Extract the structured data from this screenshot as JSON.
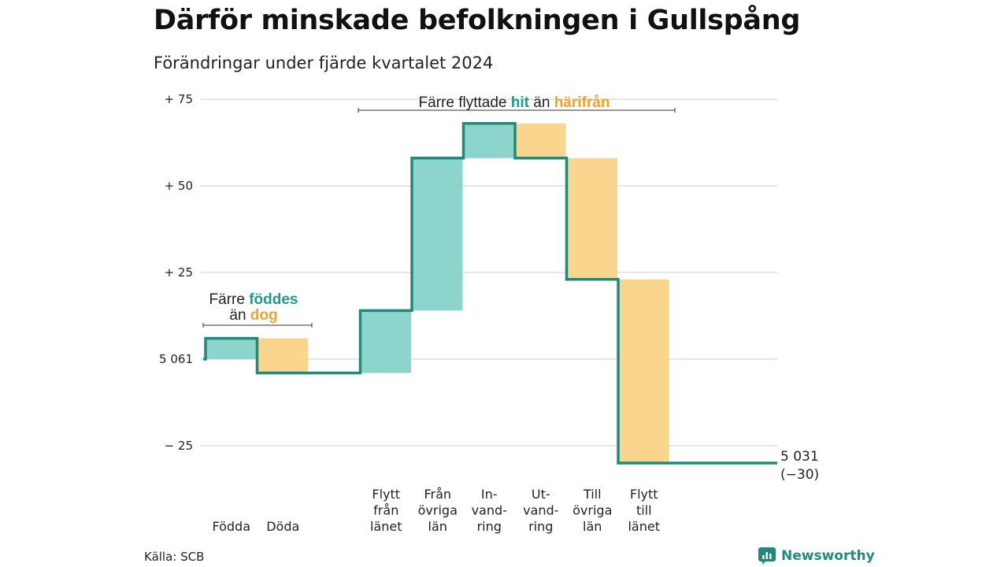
{
  "title": "Därför minskade befolkningen i Gullspång",
  "subtitle": "Förändringar under fjärde kvartalet 2024",
  "source": "Källa: SCB",
  "brand": "Newsworthy",
  "colors": {
    "increase": "#8dd5cc",
    "decrease": "#fad58e",
    "line": "#1f8a7c",
    "accent_text_green": "#1f9a8a",
    "accent_text_orange": "#f2a22c",
    "grid": "#dddddd"
  },
  "chart_data": {
    "type": "waterfall",
    "start_population": 5061,
    "end_population": 5031,
    "end_label": {
      "line1": "5 031",
      "line2": "(−30)"
    },
    "y_ticks": [
      {
        "value": 75,
        "label": "+ 75"
      },
      {
        "value": 50,
        "label": "+ 50"
      },
      {
        "value": 25,
        "label": "+ 25"
      },
      {
        "value": 0,
        "label": "5 061"
      },
      {
        "value": -25,
        "label": "− 25"
      }
    ],
    "ylim": [
      -30,
      75
    ],
    "grid": true,
    "steps": [
      {
        "label": [
          "Födda"
        ],
        "delta": 6,
        "kind": "increase"
      },
      {
        "label": [
          "Döda"
        ],
        "delta": -10,
        "kind": "decrease"
      },
      {
        "label": [],
        "delta": 0,
        "kind": "gap"
      },
      {
        "label": [
          "Flytt",
          "från",
          "länet"
        ],
        "delta": 18,
        "kind": "increase"
      },
      {
        "label": [
          "Från",
          "övriga",
          "län"
        ],
        "delta": 44,
        "kind": "increase"
      },
      {
        "label": [
          "In-",
          "vand-",
          "ring"
        ],
        "delta": 10,
        "kind": "increase"
      },
      {
        "label": [
          "Ut-",
          "vand-",
          "ring"
        ],
        "delta": -10,
        "kind": "decrease"
      },
      {
        "label": [
          "Till",
          "övriga",
          "län"
        ],
        "delta": -35,
        "kind": "decrease"
      },
      {
        "label": [
          "Flytt",
          "till",
          "länet"
        ],
        "delta": -53,
        "kind": "decrease"
      },
      {
        "label": [],
        "delta": 0,
        "kind": "tail"
      }
    ],
    "annotations": [
      {
        "parts": [
          {
            "text": "Färre ",
            "style": "plain"
          },
          {
            "text": "föddes",
            "style": "green"
          }
        ],
        "parts2": [
          {
            "text": "än ",
            "style": "plain"
          },
          {
            "text": "dog",
            "style": "orange"
          }
        ],
        "span": [
          0,
          1
        ]
      },
      {
        "parts": [
          {
            "text": "Färre flyttade ",
            "style": "plain"
          },
          {
            "text": "hit",
            "style": "green"
          },
          {
            "text": " än ",
            "style": "plain"
          },
          {
            "text": "härifrån",
            "style": "orange"
          }
        ],
        "span": [
          3,
          8
        ]
      }
    ]
  }
}
